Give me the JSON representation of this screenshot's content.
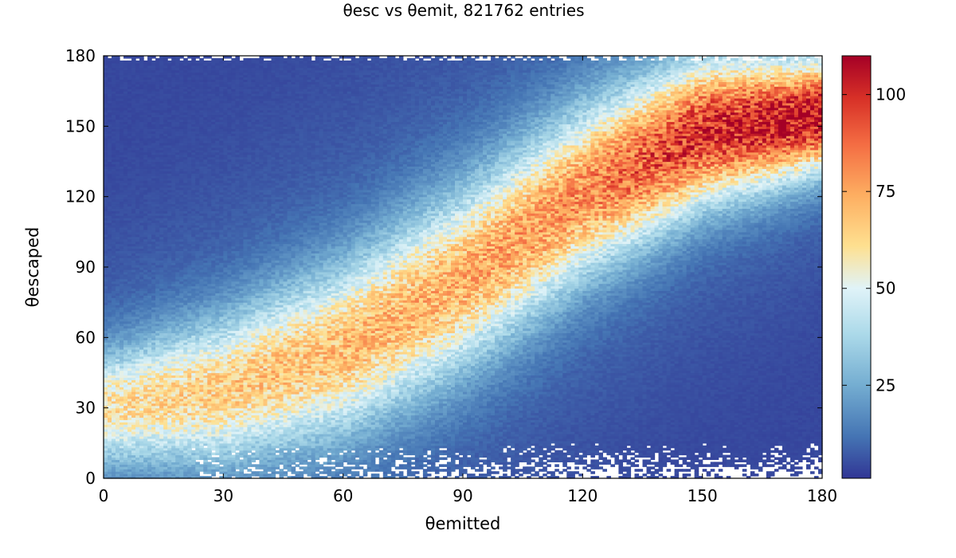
{
  "chart_data": {
    "type": "heatmap",
    "title": "θesc vs θemit, 821762 entries",
    "xlabel": "θemitted",
    "ylabel": "θescaped",
    "xlim": [
      0,
      180
    ],
    "ylim": [
      0,
      180
    ],
    "x_ticks": [
      "0",
      "30",
      "60",
      "90",
      "120",
      "150",
      "180"
    ],
    "y_ticks": [
      "0",
      "30",
      "60",
      "90",
      "120",
      "150",
      "180"
    ],
    "colorbar": {
      "ticks": [
        "25",
        "50",
        "75",
        "100"
      ],
      "tick_values": [
        25,
        50,
        75,
        100
      ],
      "range": [
        1,
        110
      ],
      "colormap": "RdYlBu_r"
    },
    "bins": {
      "x": 180,
      "y": 180
    },
    "ridge": {
      "description_points_x": [
        0,
        30,
        60,
        90,
        120,
        150,
        180
      ],
      "peak_theta_escaped": [
        30,
        38,
        55,
        85,
        122,
        148,
        155
      ],
      "peak_counts": [
        52,
        58,
        62,
        65,
        72,
        92,
        100
      ]
    },
    "empty_regions": [
      "top edge (θescaped ≈ 178–180)",
      "bottom edge (θescaped ≈ 0–15, θemitted > 60)"
    ]
  }
}
